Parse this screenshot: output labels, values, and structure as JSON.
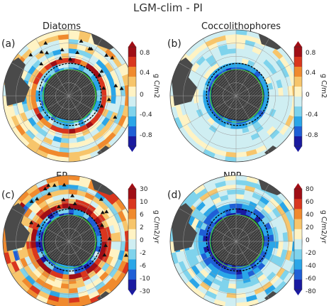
{
  "figure_title": "LGM-clim - PI",
  "panels": [
    {
      "id": "a",
      "label": "(a)",
      "title": "Diatoms",
      "colorbar": {
        "unit": "g C/m2",
        "ticks": [
          "0.8",
          "0.4",
          "0",
          "-0.4",
          "-0.8"
        ],
        "extend": "both",
        "range": [
          -1.0,
          1.0
        ]
      }
    },
    {
      "id": "b",
      "label": "(b)",
      "title": "Coccolithophores",
      "colorbar": {
        "unit": "g C/m2",
        "ticks": [
          "0.8",
          "0.4",
          "0",
          "-0.4",
          "-0.8"
        ],
        "extend": "both",
        "range": [
          -1.0,
          1.0
        ]
      }
    },
    {
      "id": "c",
      "label": "(c)",
      "title": "EP",
      "colorbar": {
        "unit": "g C/m2/yr",
        "ticks": [
          "30",
          "10",
          "6",
          "2",
          "0",
          "-2",
          "-6",
          "-10",
          "-30"
        ],
        "extend": "both",
        "range": [
          -30,
          30
        ]
      }
    },
    {
      "id": "d",
      "label": "(d)",
      "title": "NPP",
      "colorbar": {
        "unit": "g C/m2/yr",
        "ticks": [
          "80",
          "60",
          "40",
          "20",
          "0",
          "-20",
          "-40",
          "-60",
          "-80"
        ],
        "extend": "both",
        "range": [
          -80,
          80
        ]
      }
    }
  ],
  "map_style": {
    "projection": "south polar stereographic",
    "land_color": "#4a4a4a",
    "antarctica_color": "#3a3a3a",
    "grid_color": "#9a9a9a",
    "front_color_black": "#000000",
    "front_color_green": "#22cc22",
    "marker": "triangle",
    "colormap": [
      "#1a1aa0",
      "#1f5fd6",
      "#2aa6e8",
      "#7fd3ec",
      "#cfeef2",
      "#fff3c4",
      "#f7c56b",
      "#f08a2e",
      "#d9361e",
      "#a00e16"
    ]
  }
}
